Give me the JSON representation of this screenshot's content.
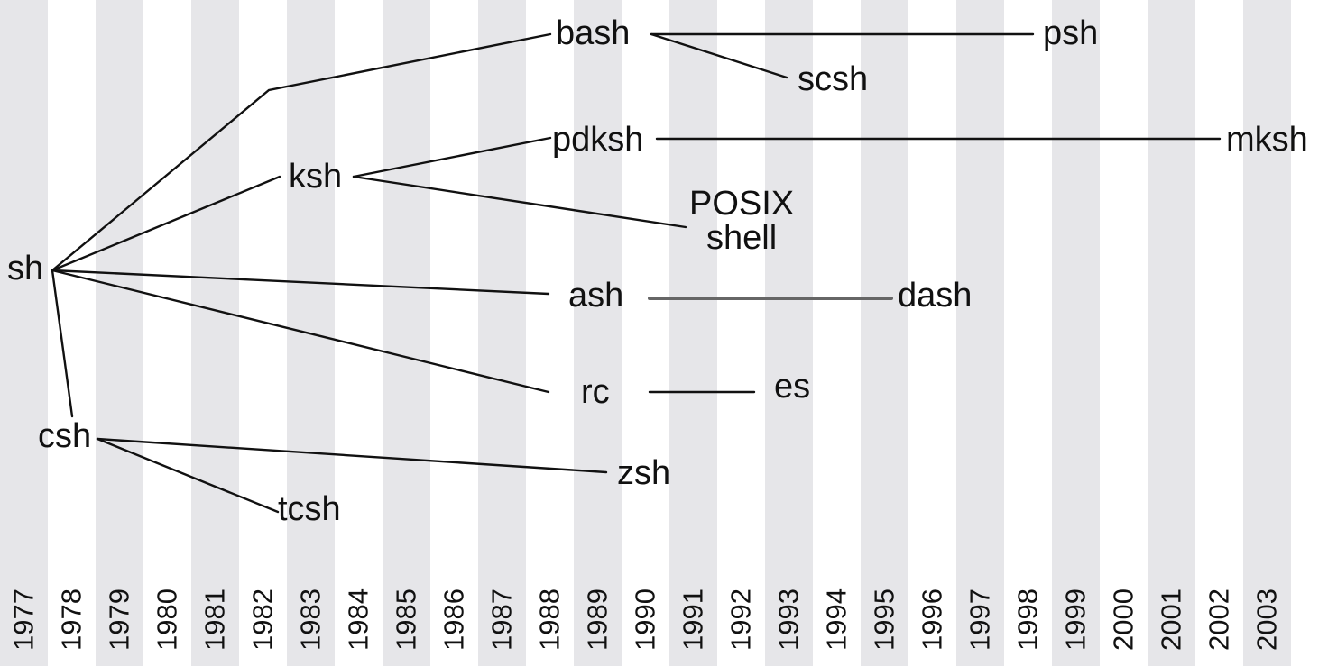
{
  "colors": {
    "stripe": "#e6e6e9",
    "background": "#ffffff",
    "ink": "#111111",
    "thick_edge": "#666666"
  },
  "years": [
    "1977",
    "1978",
    "1979",
    "1980",
    "1981",
    "1982",
    "1983",
    "1984",
    "1985",
    "1986",
    "1987",
    "1988",
    "1989",
    "1990",
    "1991",
    "1992",
    "1993",
    "1994",
    "1995",
    "1996",
    "1997",
    "1998",
    "1999",
    "2000",
    "2001",
    "2002",
    "2003"
  ],
  "shells": [
    {
      "id": "sh",
      "label": "sh"
    },
    {
      "id": "csh",
      "label": "csh"
    },
    {
      "id": "tcsh",
      "label": "tcsh"
    },
    {
      "id": "ksh",
      "label": "ksh"
    },
    {
      "id": "bash",
      "label": "bash"
    },
    {
      "id": "psh",
      "label": "psh"
    },
    {
      "id": "scsh",
      "label": "scsh"
    },
    {
      "id": "pdksh",
      "label": "pdksh"
    },
    {
      "id": "mksh",
      "label": "mksh"
    },
    {
      "id": "posix",
      "label": "POSIX",
      "label2": "shell"
    },
    {
      "id": "ash",
      "label": "ash"
    },
    {
      "id": "dash",
      "label": "dash"
    },
    {
      "id": "rc",
      "label": "rc"
    },
    {
      "id": "es",
      "label": "es"
    },
    {
      "id": "zsh",
      "label": "zsh"
    }
  ],
  "edges": [
    {
      "from": "sh",
      "to": "bash"
    },
    {
      "from": "sh",
      "to": "ksh"
    },
    {
      "from": "sh",
      "to": "ash"
    },
    {
      "from": "sh",
      "to": "rc"
    },
    {
      "from": "sh",
      "to": "csh"
    },
    {
      "from": "bash",
      "to": "psh"
    },
    {
      "from": "bash",
      "to": "scsh"
    },
    {
      "from": "ksh",
      "to": "pdksh"
    },
    {
      "from": "ksh",
      "to": "posix"
    },
    {
      "from": "pdksh",
      "to": "mksh"
    },
    {
      "from": "ash",
      "to": "dash",
      "style": "thick"
    },
    {
      "from": "rc",
      "to": "es"
    },
    {
      "from": "csh",
      "to": "zsh"
    },
    {
      "from": "csh",
      "to": "tcsh"
    }
  ]
}
